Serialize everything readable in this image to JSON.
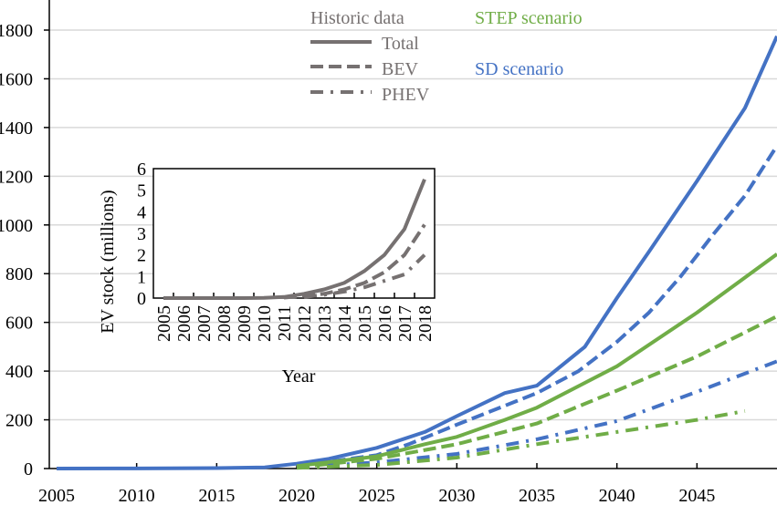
{
  "chart_data": [
    {
      "type": "line",
      "xlim": [
        2005,
        2050
      ],
      "ylim": [
        0,
        1800
      ],
      "x_ticks": [
        "2005",
        "2010",
        "2015",
        "2020",
        "2025",
        "2030",
        "2035",
        "2040",
        "2045"
      ],
      "y_ticks": [
        "0",
        "200",
        "400",
        "600",
        "800",
        "1000",
        "1200",
        "1400",
        "1600",
        "1800"
      ],
      "grid": true,
      "colors": {
        "SD scenario": "#4472C4",
        "STEP scenario": "#70AD47",
        "Historic data": "#767171",
        "grid": "#d9d9d9"
      },
      "legend": {
        "position": "top",
        "historic_title": "Historic data",
        "entries": [
          "Total",
          "BEV",
          "PHEV"
        ],
        "scenario_labels": [
          "STEP scenario",
          "SD scenario"
        ]
      },
      "series": [
        {
          "name": "SD scenario Total",
          "style": "solid",
          "color": "#4472C4",
          "x": [
            2005,
            2010,
            2015,
            2018,
            2020,
            2022,
            2025,
            2028,
            2030,
            2033,
            2035,
            2038,
            2040,
            2042,
            2045,
            2048,
            2050
          ],
          "y": [
            0,
            0.5,
            2,
            5,
            20,
            40,
            85,
            150,
            215,
            310,
            340,
            500,
            700,
            890,
            1180,
            1480,
            1775
          ]
        },
        {
          "name": "SD scenario BEV",
          "style": "dashed",
          "color": "#4472C4",
          "x": [
            2020,
            2025,
            2027,
            2030,
            2035,
            2037.6,
            2040,
            2042,
            2044,
            2046,
            2048,
            2050
          ],
          "y": [
            10,
            55,
            100,
            180,
            310,
            400,
            520,
            640,
            790,
            960,
            1120,
            1325
          ]
        },
        {
          "name": "SD scenario PHEV",
          "style": "dash-dot",
          "color": "#4472C4",
          "x": [
            2020,
            2025,
            2030,
            2035,
            2040,
            2045,
            2050
          ],
          "y": [
            5,
            25,
            60,
            120,
            195,
            315,
            440
          ]
        },
        {
          "name": "STEP scenario Total",
          "style": "solid",
          "color": "#70AD47",
          "x": [
            2020,
            2025,
            2028,
            2030,
            2033,
            2035,
            2040,
            2045,
            2050
          ],
          "y": [
            10,
            50,
            100,
            130,
            200,
            250,
            420,
            640,
            880
          ]
        },
        {
          "name": "STEP scenario BEV",
          "style": "dashed",
          "color": "#70AD47",
          "x": [
            2020,
            2025,
            2030,
            2035,
            2040,
            2045,
            2050
          ],
          "y": [
            5,
            40,
            100,
            185,
            320,
            460,
            625
          ]
        },
        {
          "name": "STEP scenario PHEV",
          "style": "dash-dot",
          "color": "#70AD47",
          "x": [
            2020,
            2025,
            2030,
            2035,
            2040,
            2045,
            2048
          ],
          "y": [
            3,
            15,
            45,
            100,
            150,
            200,
            236
          ]
        }
      ]
    },
    {
      "type": "line",
      "xlabel": "Year",
      "ylabel": "EV stock (millions)",
      "xlim": [
        2005,
        2018
      ],
      "ylim": [
        0,
        6
      ],
      "x_ticks": [
        "2005",
        "2006",
        "2007",
        "2008",
        "2009",
        "2010",
        "2011",
        "2012",
        "2013",
        "2014",
        "2015",
        "2016",
        "2017",
        "2018"
      ],
      "y_ticks": [
        "0",
        "1",
        "2",
        "3",
        "4",
        "5",
        "6"
      ],
      "series": [
        {
          "name": "Total",
          "style": "solid",
          "color": "#767171",
          "x": [
            2005,
            2006,
            2007,
            2008,
            2009,
            2010,
            2011,
            2012,
            2013,
            2014,
            2015,
            2016,
            2017,
            2018
          ],
          "y": [
            0,
            0,
            0,
            0,
            0,
            0.01,
            0.05,
            0.2,
            0.4,
            0.7,
            1.25,
            2.0,
            3.2,
            5.5
          ]
        },
        {
          "name": "BEV",
          "style": "dashed",
          "color": "#767171",
          "x": [
            2011,
            2012,
            2013,
            2014,
            2015,
            2016,
            2017,
            2018
          ],
          "y": [
            0.02,
            0.1,
            0.2,
            0.4,
            0.7,
            1.2,
            2.0,
            3.4
          ]
        },
        {
          "name": "PHEV",
          "style": "dash-dot",
          "color": "#767171",
          "x": [
            2012,
            2013,
            2014,
            2015,
            2016,
            2017,
            2018
          ],
          "y": [
            0.05,
            0.15,
            0.3,
            0.5,
            0.8,
            1.1,
            2.0
          ]
        }
      ]
    }
  ]
}
